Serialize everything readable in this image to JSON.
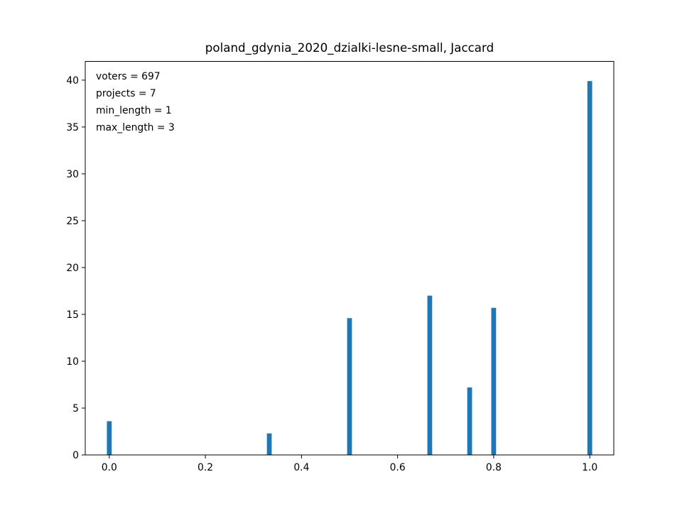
{
  "chart_data": {
    "type": "bar",
    "title": "poland_gdynia_2020_dzialki-lesne-small, Jaccard",
    "xlabel": "",
    "ylabel": "",
    "xlim": [
      -0.05,
      1.05
    ],
    "ylim": [
      0,
      42
    ],
    "x_ticks": [
      "0.0",
      "0.2",
      "0.4",
      "0.6",
      "0.8",
      "1.0"
    ],
    "y_ticks": [
      "0",
      "5",
      "10",
      "15",
      "20",
      "25",
      "30",
      "35",
      "40"
    ],
    "bar_width": 0.01,
    "bar_color": "#1f77b4",
    "grid": false,
    "x": [
      0.0,
      0.333,
      0.5,
      0.667,
      0.75,
      0.8,
      1.0
    ],
    "values": [
      3.6,
      2.3,
      14.6,
      17.0,
      7.2,
      15.7,
      39.9
    ],
    "annotations": [
      "voters = 697",
      "projects = 7",
      "min_length = 1",
      "max_length = 3"
    ]
  }
}
